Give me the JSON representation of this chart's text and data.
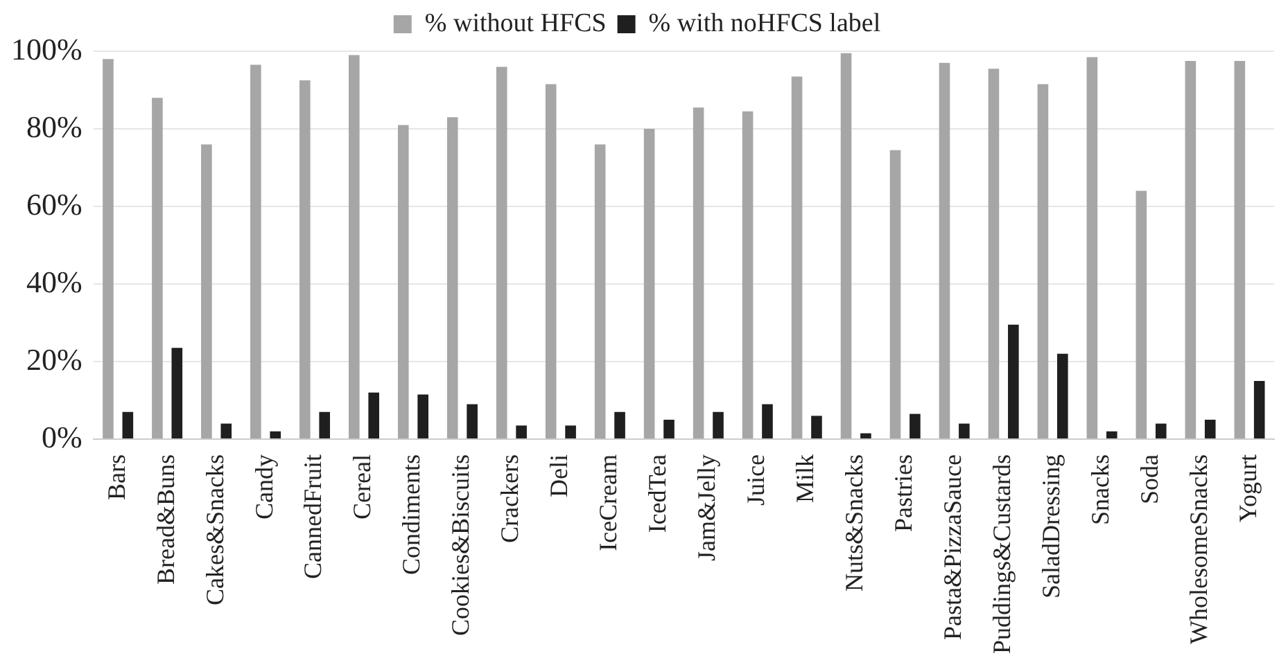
{
  "chart_data": {
    "type": "bar",
    "categories": [
      "Bars",
      "Bread&Buns",
      "Cakes&Snacks",
      "Candy",
      "CannedFruit",
      "Cereal",
      "Condiments",
      "Cookies&Biscuits",
      "Crackers",
      "Deli",
      "IceCream",
      "IcedTea",
      "Jam&Jelly",
      "Juice",
      "Milk",
      "Nuts&Snacks",
      "Pastries",
      "Pasta&PizzaSauce",
      "Puddings&Custards",
      "SaladDressing",
      "Snacks",
      "Soda",
      "WholesomeSnacks",
      "Yogurt"
    ],
    "series": [
      {
        "name": "% without HFCS",
        "color": "#a6a6a6",
        "values": [
          98,
          88,
          76,
          96.5,
          92.5,
          99,
          81,
          83,
          96,
          91.5,
          76,
          80,
          85.5,
          84.5,
          93.5,
          99.5,
          74.5,
          97,
          95.5,
          91.5,
          98.5,
          64,
          97.5,
          97.5
        ]
      },
      {
        "name": "% with noHFCS label",
        "color": "#1f1f1f",
        "values": [
          7,
          23.5,
          4,
          2,
          7,
          12,
          11.5,
          9,
          3.5,
          3.5,
          7,
          5,
          7,
          9,
          6,
          1.5,
          6.5,
          4,
          29.5,
          22,
          2,
          4,
          5,
          15
        ]
      }
    ],
    "ylim": [
      0,
      100
    ],
    "yticks": [
      {
        "value": 0,
        "label": "0%"
      },
      {
        "value": 20,
        "label": "20%"
      },
      {
        "value": 40,
        "label": "40%"
      },
      {
        "value": 60,
        "label": "60%"
      },
      {
        "value": 80,
        "label": "80%"
      },
      {
        "value": 100,
        "label": "100%"
      }
    ],
    "grid": "y",
    "legend": "top"
  }
}
